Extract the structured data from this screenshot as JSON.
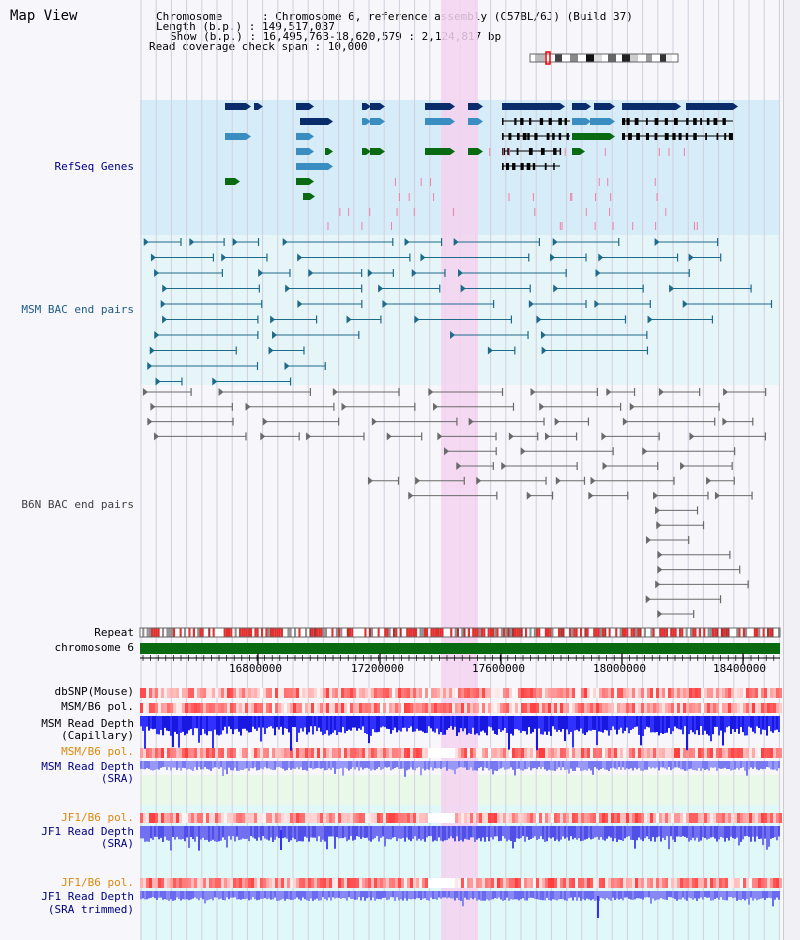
{
  "page": {
    "title": "Map View"
  },
  "header": {
    "chrom_key": "Chromosome",
    "chrom_val": ": Chromosome 6, reference assembly (C57BL/6J) (Build 37)",
    "length_key": "Length (b.p.)",
    "length_val": ": 149,517,037",
    "show_key": "Show (b.p.)",
    "show_val": ": 16,495,763-18,620,579 : 2,124,817 bp",
    "coverage": "Read coverage check span : 10,000"
  },
  "tracks": {
    "refseq": "RefSeq Genes",
    "msm_bac": "MSM BAC end pairs",
    "b6n_bac": "B6N BAC end pairs",
    "repeat": "Repeat",
    "chromosome": "chromosome 6",
    "dbsnp": "dbSNP(Mouse)",
    "msm_b6_pol": "MSM/B6 pol.",
    "msm_rd_cap_1": "MSM Read Depth",
    "msm_rd_cap_2": "(Capillary)",
    "msm_b6_pol_sra": "MSM/B6 pol.",
    "msm_rd_sra_1": "MSM Read Depth",
    "msm_rd_sra_2": "(SRA)",
    "jf1_b6_pol": "JF1/B6 pol.",
    "jf1_rd_1": "JF1 Read Depth",
    "jf1_rd_2": "(SRA)",
    "jf1_b6_pol_t": "JF1/B6 pol.",
    "jf1_rdt_1": "JF1 Read Depth",
    "jf1_rdt_2": "(SRA trimmed)"
  },
  "ruler": {
    "ticks": [
      "16800000",
      "17200000",
      "17600000",
      "18000000",
      "18400000"
    ]
  },
  "colors": {
    "highlight": "#f5d2f0",
    "refseq_bg": "#d6ecf8",
    "msm_bg": "#e6f6f8",
    "navy": "#0a2c6a",
    "steel": "#3a8dc0",
    "green": "#0a6a12",
    "chrom": "#0a6a12",
    "label_blue": "#000080",
    "label_teal": "#1e5b86",
    "label_gray": "#404040",
    "label_orange": "#e0880a"
  }
}
